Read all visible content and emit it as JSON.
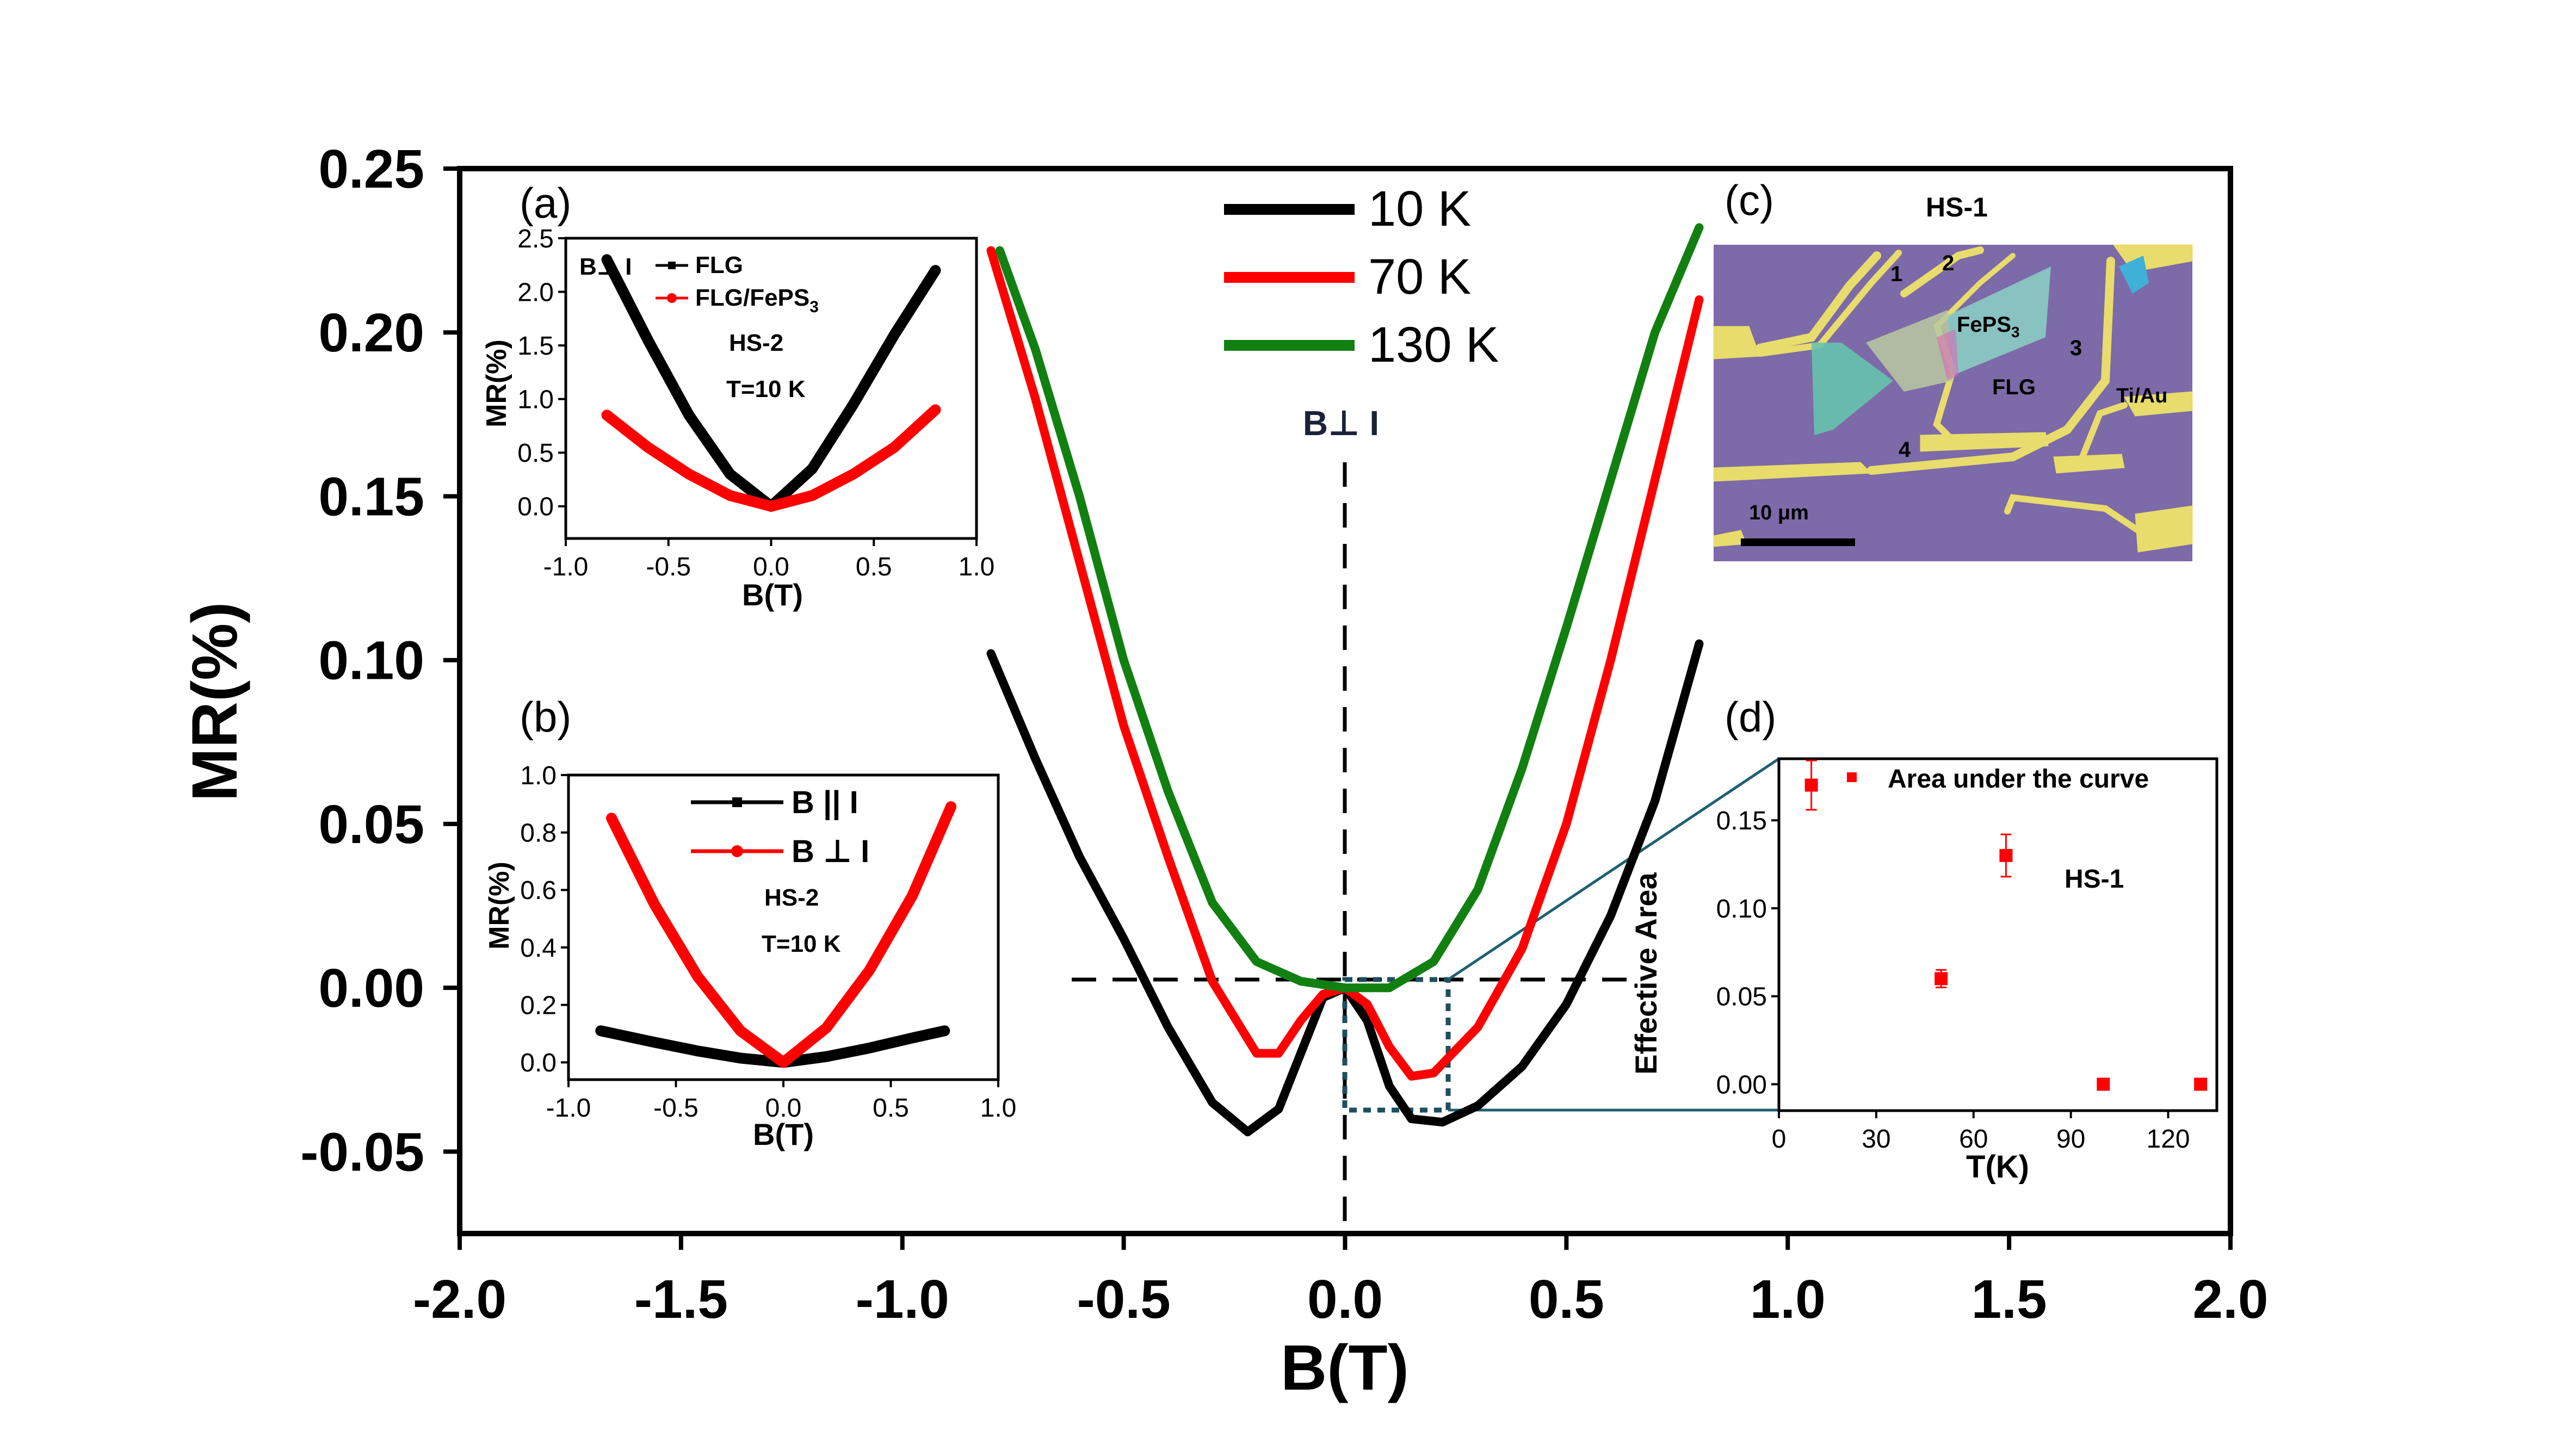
{
  "colors": {
    "black": "#000000",
    "red": "#ff0000",
    "green": "#118011",
    "zoom": "#1f5f6f"
  },
  "main": {
    "xlabel": "B(T)",
    "ylabel": "MR(%)",
    "xticks": [
      "-2.0",
      "-1.5",
      "-1.0",
      "-0.5",
      "0.0",
      "0.5",
      "1.0",
      "1.5",
      "2.0"
    ],
    "yticks": [
      "-0.05",
      "0.00",
      "0.05",
      "0.10",
      "0.15",
      "0.20",
      "0.25"
    ],
    "orientation": "B⊥ I"
  },
  "inset_a": {
    "panel": "(a)",
    "xlabel": "B(T)",
    "ylabel": "MR(%)",
    "xticks": [
      "-1.0",
      "-0.5",
      "0.0",
      "0.5",
      "1.0"
    ],
    "yticks": [
      "0.0",
      "0.5",
      "1.0",
      "1.5",
      "2.0",
      "2.5"
    ],
    "corner": "B⊥ I",
    "legend": [
      "FLG",
      "FLG/FePS"
    ],
    "legend_sub": "3",
    "device": "HS-2",
    "temp": "T=10 K"
  },
  "inset_b": {
    "panel": "(b)",
    "xlabel": "B(T)",
    "ylabel": "MR(%)",
    "xticks": [
      "-1.0",
      "-0.5",
      "0.0",
      "0.5",
      "1.0"
    ],
    "yticks": [
      "0.0",
      "0.2",
      "0.4",
      "0.6",
      "0.8",
      "1.0"
    ],
    "legend": [
      "B || I",
      "B ⊥ I"
    ],
    "device": "HS-2",
    "temp": "T=10 K"
  },
  "inset_c": {
    "panel": "(c)",
    "device": "HS-1",
    "labels": {
      "n1": "1",
      "n2": "2",
      "n3": "3",
      "n4": "4",
      "fepsBase": "FePS",
      "fepsSub": "3",
      "flg": "FLG",
      "tiau": "Ti/Au",
      "scale": "10 μm"
    }
  },
  "inset_d": {
    "panel": "(d)",
    "xlabel": "T(K)",
    "ylabel": "Effective Area",
    "xticks": [
      "0",
      "30",
      "60",
      "90",
      "120"
    ],
    "yticks": [
      "0.00",
      "0.05",
      "0.10",
      "0.15"
    ],
    "legend": "Area under the curve",
    "device": "HS-1"
  },
  "chart_data": [
    {
      "type": "line",
      "title": "",
      "xlabel": "B(T)",
      "ylabel": "MR(%)",
      "xlim": [
        -2.0,
        2.0
      ],
      "ylim": [
        -0.075,
        0.25
      ],
      "legend_position": "top-center",
      "series": [
        {
          "name": "10 K",
          "color": "#000000",
          "x": [
            -0.8,
            -0.7,
            -0.6,
            -0.5,
            -0.4,
            -0.3,
            -0.22,
            -0.15,
            -0.1,
            -0.05,
            0.0,
            0.05,
            0.1,
            0.15,
            0.22,
            0.3,
            0.4,
            0.5,
            0.6,
            0.7,
            0.8
          ],
          "y": [
            0.102,
            0.07,
            0.04,
            0.015,
            -0.012,
            -0.035,
            -0.044,
            -0.037,
            -0.02,
            -0.003,
            0.0,
            -0.01,
            -0.03,
            -0.04,
            -0.041,
            -0.036,
            -0.024,
            -0.005,
            0.022,
            0.057,
            0.105
          ]
        },
        {
          "name": "70 K",
          "color": "#ff0000",
          "x": [
            -0.8,
            -0.7,
            -0.6,
            -0.5,
            -0.4,
            -0.3,
            -0.2,
            -0.15,
            -0.1,
            -0.05,
            0.0,
            0.05,
            0.1,
            0.15,
            0.2,
            0.3,
            0.4,
            0.5,
            0.6,
            0.7,
            0.8
          ],
          "y": [
            0.225,
            0.18,
            0.13,
            0.08,
            0.04,
            0.002,
            -0.02,
            -0.02,
            -0.01,
            -0.002,
            0.0,
            -0.005,
            -0.018,
            -0.027,
            -0.026,
            -0.012,
            0.012,
            0.05,
            0.1,
            0.155,
            0.21
          ]
        },
        {
          "name": "130 K",
          "color": "#118011",
          "x": [
            -0.78,
            -0.7,
            -0.6,
            -0.5,
            -0.4,
            -0.3,
            -0.2,
            -0.1,
            0.0,
            0.1,
            0.2,
            0.3,
            0.4,
            0.5,
            0.6,
            0.7,
            0.8
          ],
          "y": [
            0.225,
            0.195,
            0.15,
            0.1,
            0.06,
            0.026,
            0.008,
            0.002,
            0.0,
            0.0,
            0.008,
            0.03,
            0.067,
            0.11,
            0.155,
            0.2,
            0.232
          ]
        }
      ],
      "annotations": [
        "B⊥ I"
      ]
    },
    {
      "type": "line",
      "title": "(a)",
      "xlabel": "B(T)",
      "ylabel": "MR(%)",
      "xlim": [
        -1.0,
        1.0
      ],
      "ylim": [
        -0.3,
        2.5
      ],
      "series": [
        {
          "name": "FLG",
          "color": "#000000",
          "x": [
            -0.8,
            -0.6,
            -0.4,
            -0.2,
            0.0,
            0.2,
            0.4,
            0.6,
            0.8
          ],
          "y": [
            2.3,
            1.55,
            0.85,
            0.3,
            0.0,
            0.35,
            0.95,
            1.6,
            2.2
          ]
        },
        {
          "name": "FLG/FePS3",
          "color": "#ff0000",
          "x": [
            -0.8,
            -0.6,
            -0.4,
            -0.2,
            0.0,
            0.2,
            0.4,
            0.6,
            0.8
          ],
          "y": [
            0.85,
            0.55,
            0.3,
            0.1,
            0.0,
            0.1,
            0.3,
            0.55,
            0.9
          ]
        }
      ]
    },
    {
      "type": "line",
      "title": "(b)",
      "xlabel": "B(T)",
      "ylabel": "MR(%)",
      "xlim": [
        -1.0,
        1.0
      ],
      "ylim": [
        -0.06,
        1.0
      ],
      "series": [
        {
          "name": "B || I",
          "color": "#000000",
          "x": [
            -0.85,
            -0.6,
            -0.4,
            -0.2,
            0.0,
            0.2,
            0.4,
            0.6,
            0.75
          ],
          "y": [
            0.11,
            0.07,
            0.04,
            0.015,
            0.0,
            0.02,
            0.05,
            0.085,
            0.11
          ]
        },
        {
          "name": "B ⊥ I",
          "color": "#ff0000",
          "x": [
            -0.8,
            -0.6,
            -0.4,
            -0.2,
            0.0,
            0.2,
            0.4,
            0.6,
            0.78
          ],
          "y": [
            0.85,
            0.55,
            0.3,
            0.11,
            0.0,
            0.12,
            0.32,
            0.58,
            0.89
          ]
        }
      ]
    },
    {
      "type": "scatter",
      "title": "(d)",
      "xlabel": "T(K)",
      "ylabel": "Effective Area",
      "xlim": [
        0,
        135
      ],
      "ylim": [
        -0.015,
        0.185
      ],
      "series": [
        {
          "name": "Area under the curve",
          "color": "#ff0000",
          "x": [
            10,
            50,
            70,
            100,
            130
          ],
          "y": [
            0.17,
            0.06,
            0.13,
            0.0,
            0.0
          ],
          "err": [
            0.014,
            0.005,
            0.012,
            0,
            0
          ]
        }
      ],
      "annotations": [
        "HS-1"
      ]
    }
  ]
}
